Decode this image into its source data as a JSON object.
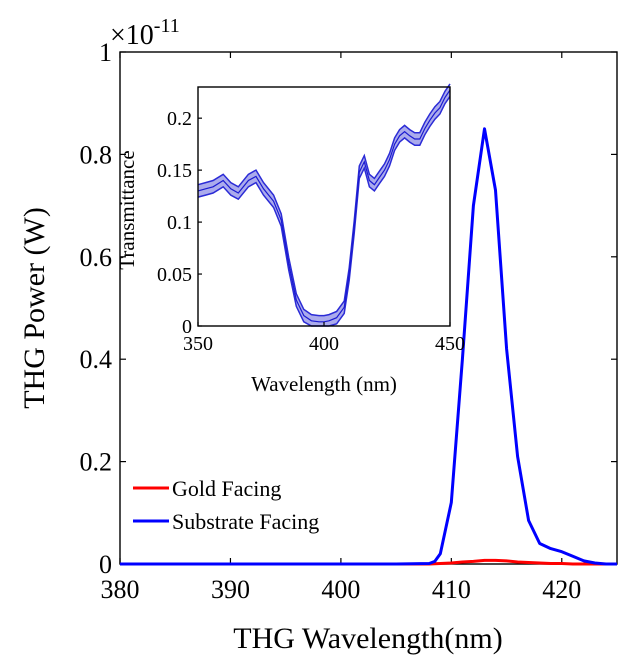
{
  "chart_data": [
    {
      "type": "line",
      "exponent_label": {
        "base": "×10",
        "exp": "-11"
      },
      "xlabel": "THG Wavelength(nm)",
      "ylabel": "THG Power (W)",
      "xlim": [
        380,
        425
      ],
      "ylim": [
        0,
        1
      ],
      "xticks": [
        380,
        390,
        400,
        410,
        420
      ],
      "xtick_labels": [
        "380",
        "390",
        "400",
        "410",
        "420"
      ],
      "yticks": [
        0,
        0.2,
        0.4,
        0.6,
        0.8,
        1
      ],
      "ytick_labels": [
        "0",
        "0.2",
        "0.4",
        "0.6",
        "0.8",
        "1"
      ],
      "legend_position": "lower-left",
      "series": [
        {
          "name": "Gold Facing",
          "color": "#ff0000",
          "x": [
            380,
            385,
            390,
            395,
            400,
            405,
            408,
            409,
            410,
            411,
            412,
            413,
            414,
            415,
            416,
            417,
            418,
            419,
            420,
            421,
            422,
            423,
            424,
            425
          ],
          "y": [
            0,
            0,
            0,
            0,
            0,
            0,
            0,
            0.001,
            0.002,
            0.004,
            0.005,
            0.007,
            0.007,
            0.006,
            0.004,
            0.003,
            0.002,
            0.001,
            0.001,
            0,
            0,
            0,
            0,
            0
          ]
        },
        {
          "name": "Substrate Facing",
          "color": "#0000ff",
          "x": [
            380,
            385,
            390,
            395,
            400,
            405,
            408,
            408.5,
            409,
            410,
            411,
            412,
            413,
            414,
            415,
            416,
            417,
            418,
            419,
            420,
            421,
            422,
            423,
            424,
            425
          ],
          "y": [
            0,
            0,
            0,
            0,
            0,
            0,
            0.001,
            0.005,
            0.02,
            0.12,
            0.4,
            0.7,
            0.85,
            0.73,
            0.42,
            0.21,
            0.085,
            0.04,
            0.03,
            0.024,
            0.015,
            0.006,
            0.002,
            0,
            0
          ]
        }
      ]
    },
    {
      "type": "line",
      "xlabel": "Wavelength (nm)",
      "ylabel": "Transmittance",
      "xlim": [
        350,
        450
      ],
      "ylim": [
        0,
        0.23
      ],
      "xticks": [
        350,
        400,
        450
      ],
      "xtick_labels": [
        "350",
        "400",
        "450"
      ],
      "yticks": [
        0,
        0.05,
        0.1,
        0.15,
        0.2
      ],
      "ytick_labels": [
        "0",
        "0.05",
        "0.1",
        "0.15",
        "0.2"
      ],
      "band_halfwidth": 0.006,
      "series": [
        {
          "name": "",
          "color": "#2b2bd6",
          "band_color": "#8f8fe6",
          "x": [
            350,
            353,
            356,
            360,
            363,
            366,
            370,
            373,
            376,
            380,
            383,
            386,
            389,
            392,
            395,
            398,
            400,
            402,
            405,
            408,
            410,
            412,
            414,
            416,
            418,
            420,
            422,
            424,
            426,
            428,
            430,
            432,
            434,
            436,
            438,
            440,
            442,
            444,
            446,
            448,
            450
          ],
          "y": [
            0.13,
            0.132,
            0.134,
            0.14,
            0.132,
            0.128,
            0.14,
            0.144,
            0.132,
            0.12,
            0.102,
            0.06,
            0.025,
            0.01,
            0.005,
            0.004,
            0.004,
            0.005,
            0.008,
            0.018,
            0.05,
            0.095,
            0.148,
            0.158,
            0.14,
            0.136,
            0.143,
            0.15,
            0.16,
            0.175,
            0.183,
            0.187,
            0.183,
            0.18,
            0.18,
            0.19,
            0.198,
            0.205,
            0.21,
            0.22,
            0.227
          ]
        }
      ]
    }
  ]
}
